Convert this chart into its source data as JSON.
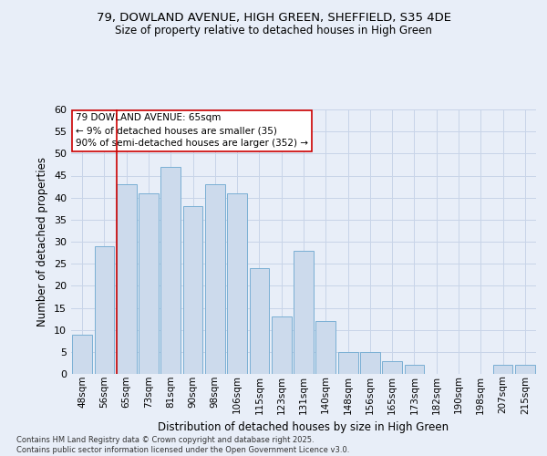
{
  "title_line1": "79, DOWLAND AVENUE, HIGH GREEN, SHEFFIELD, S35 4DE",
  "title_line2": "Size of property relative to detached houses in High Green",
  "xlabel": "Distribution of detached houses by size in High Green",
  "ylabel": "Number of detached properties",
  "bar_labels": [
    "48sqm",
    "56sqm",
    "65sqm",
    "73sqm",
    "81sqm",
    "90sqm",
    "98sqm",
    "106sqm",
    "115sqm",
    "123sqm",
    "131sqm",
    "140sqm",
    "148sqm",
    "156sqm",
    "165sqm",
    "173sqm",
    "182sqm",
    "190sqm",
    "198sqm",
    "207sqm",
    "215sqm"
  ],
  "bar_values": [
    9,
    29,
    43,
    41,
    47,
    38,
    43,
    41,
    24,
    13,
    28,
    12,
    5,
    5,
    3,
    2,
    0,
    0,
    0,
    2,
    2
  ],
  "bar_color": "#ccdaec",
  "bar_edgecolor": "#7aafd4",
  "vline_color": "#cc0000",
  "annotation_title": "79 DOWLAND AVENUE: 65sqm",
  "annotation_line1": "← 9% of detached houses are smaller (35)",
  "annotation_line2": "90% of semi-detached houses are larger (352) →",
  "annotation_box_facecolor": "#ffffff",
  "annotation_box_edgecolor": "#cc0000",
  "ylim": [
    0,
    60
  ],
  "yticks": [
    0,
    5,
    10,
    15,
    20,
    25,
    30,
    35,
    40,
    45,
    50,
    55,
    60
  ],
  "grid_color": "#c8d4e8",
  "bg_color": "#e8eef8",
  "footnote_line1": "Contains HM Land Registry data © Crown copyright and database right 2025.",
  "footnote_line2": "Contains public sector information licensed under the Open Government Licence v3.0."
}
